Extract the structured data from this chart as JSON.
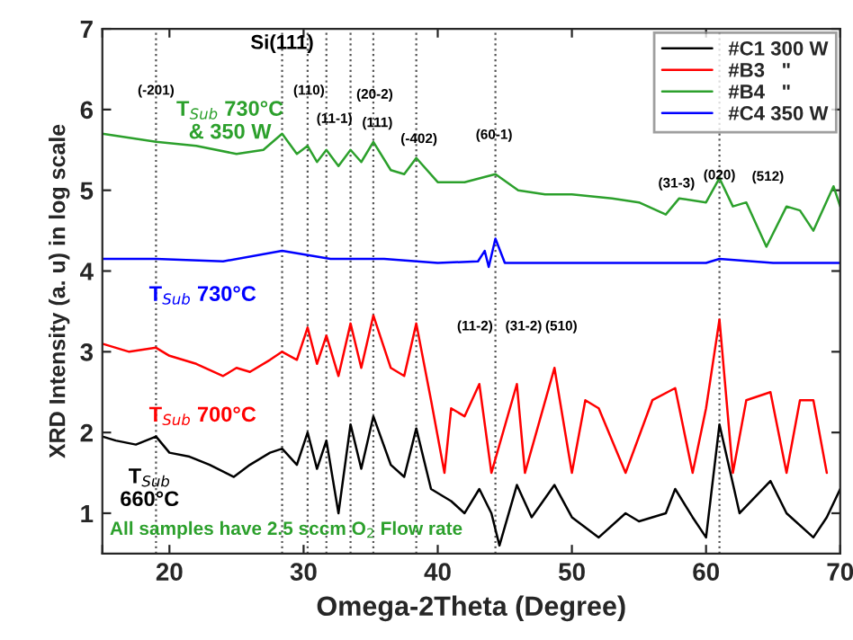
{
  "chart_data": {
    "type": "line",
    "xlabel": "Omega-2Theta (Degree)",
    "ylabel": "XRD Intensity (a. u) in log scale",
    "xlim": [
      15,
      70
    ],
    "xticks": [
      {
        "value": 15,
        "label": null
      },
      20,
      30,
      40,
      50,
      60,
      70
    ],
    "ylim": [
      0.5,
      7
    ],
    "yticks": [
      1,
      2,
      3,
      4,
      5,
      6,
      7
    ],
    "grid": false,
    "legend": "top right",
    "line_style": "solid",
    "marker": "none",
    "series": [
      {
        "name": "#C1 300 W",
        "color": "#000000",
        "x": [
          15,
          16,
          17.5,
          19,
          20,
          21.5,
          23,
          24.8,
          26,
          27.5,
          28.4,
          29.5,
          30.3,
          31,
          31.7,
          32.6,
          33.5,
          34.3,
          35.2,
          36.5,
          37.5,
          38.4,
          39.5,
          41,
          42,
          43.1,
          44,
          44.6,
          45.9,
          47,
          48.7,
          50,
          52,
          54,
          55,
          57,
          57.7,
          59,
          60,
          61,
          62.5,
          64.8,
          66,
          68,
          69,
          70
        ],
        "values": [
          1.95,
          1.9,
          1.85,
          1.95,
          1.75,
          1.7,
          1.6,
          1.45,
          1.6,
          1.75,
          1.8,
          1.6,
          2.0,
          1.55,
          1.9,
          1.0,
          2.1,
          1.55,
          2.2,
          1.6,
          1.45,
          2.05,
          1.3,
          1.15,
          1.0,
          1.3,
          1.0,
          0.6,
          1.35,
          0.95,
          1.35,
          0.95,
          0.7,
          1.0,
          0.9,
          1.0,
          1.3,
          0.95,
          0.7,
          2.1,
          1.0,
          1.4,
          1.0,
          0.7,
          0.95,
          1.3
        ]
      },
      {
        "name": "#B3   \"",
        "color": "#ff0000",
        "x": [
          15,
          17,
          19,
          20,
          22,
          24,
          25,
          26,
          27.5,
          28.4,
          29.5,
          30.3,
          31,
          31.7,
          32.6,
          33.5,
          34.3,
          35.2,
          36.5,
          37.5,
          38.4,
          39.5,
          40.5,
          41,
          42,
          43.1,
          44,
          45.9,
          46.5,
          48.7,
          50,
          51,
          52,
          54,
          56,
          57.7,
          59,
          60,
          61,
          62,
          63,
          64.8,
          66,
          67,
          68,
          69
        ],
        "values": [
          3.1,
          3.0,
          3.05,
          2.95,
          2.85,
          2.7,
          2.8,
          2.75,
          2.9,
          3.0,
          2.9,
          3.3,
          2.85,
          3.2,
          2.7,
          3.35,
          2.8,
          3.45,
          2.8,
          2.7,
          3.35,
          2.4,
          1.5,
          2.3,
          2.2,
          2.6,
          1.5,
          2.6,
          1.5,
          2.8,
          1.5,
          2.4,
          2.3,
          1.5,
          2.4,
          2.55,
          1.5,
          2.3,
          3.4,
          1.5,
          2.4,
          2.5,
          1.5,
          2.4,
          2.4,
          1.5
        ]
      },
      {
        "name": "#B4   \"",
        "color": "#2ca02c",
        "x": [
          15,
          17,
          19,
          22,
          25,
          27,
          28.4,
          29.5,
          30.3,
          31,
          31.7,
          32.6,
          33.5,
          34.3,
          35.2,
          36.5,
          37.5,
          38.4,
          40,
          42,
          44.3,
          46,
          48,
          50,
          53,
          55,
          57,
          58,
          60,
          61,
          62,
          63,
          64.5,
          66,
          67,
          68,
          69.5,
          70
        ],
        "values": [
          5.7,
          5.65,
          5.6,
          5.55,
          5.45,
          5.5,
          5.7,
          5.45,
          5.55,
          5.35,
          5.5,
          5.3,
          5.5,
          5.35,
          5.6,
          5.25,
          5.2,
          5.4,
          5.1,
          5.1,
          5.2,
          5.0,
          4.95,
          4.95,
          4.9,
          4.85,
          4.7,
          4.9,
          4.85,
          5.15,
          4.8,
          4.85,
          4.3,
          4.8,
          4.75,
          4.5,
          5.05,
          4.8
        ]
      },
      {
        "name": "#C4 350 W",
        "color": "#0000ff",
        "x": [
          15,
          19,
          24,
          28.4,
          32,
          36,
          40,
          43,
          43.5,
          43.8,
          44.3,
          45,
          50,
          55,
          60,
          61,
          65,
          70
        ],
        "values": [
          4.15,
          4.15,
          4.12,
          4.25,
          4.15,
          4.15,
          4.1,
          4.12,
          4.25,
          4.05,
          4.4,
          4.1,
          4.1,
          4.1,
          4.1,
          4.15,
          4.1,
          4.1
        ]
      }
    ],
    "ref_lines": [
      {
        "axis": "x",
        "value": 19,
        "color": "#555555",
        "line_style": "dotted"
      },
      {
        "axis": "x",
        "value": 28.4,
        "color": "#555555",
        "line_style": "dotted"
      },
      {
        "axis": "x",
        "value": 30.3,
        "color": "#555555",
        "line_style": "dotted"
      },
      {
        "axis": "x",
        "value": 31.7,
        "color": "#555555",
        "line_style": "dotted"
      },
      {
        "axis": "x",
        "value": 33.5,
        "color": "#555555",
        "line_style": "dotted"
      },
      {
        "axis": "x",
        "value": 35.2,
        "color": "#555555",
        "line_style": "dotted"
      },
      {
        "axis": "x",
        "value": 38.4,
        "color": "#555555",
        "line_style": "dotted"
      },
      {
        "axis": "x",
        "value": 44.3,
        "color": "#555555",
        "line_style": "dotted"
      },
      {
        "axis": "x",
        "value": 61,
        "color": "#555555",
        "line_style": "dotted"
      }
    ],
    "annotations": [
      {
        "text": "Si(111)",
        "x": 28.4,
        "y": 6.7
      },
      {
        "text": "(-201)",
        "x": 19,
        "y": 6.15
      },
      {
        "text": "(110)",
        "x": 30.4,
        "y": 6.15
      },
      {
        "text": "(11-1)",
        "x": 32.3,
        "y": 5.8
      },
      {
        "text": "(20-2)",
        "x": 35.3,
        "y": 6.1
      },
      {
        "text": "(111)",
        "x": 35.5,
        "y": 5.75
      },
      {
        "text": "(-402)",
        "x": 38.6,
        "y": 5.55
      },
      {
        "text": "(60-1)",
        "x": 44.2,
        "y": 5.6
      },
      {
        "text": "(31-3)",
        "x": 57.8,
        "y": 5.0
      },
      {
        "text": "(020)",
        "x": 61,
        "y": 5.1
      },
      "(512)",
      "(11-2)",
      "(31-2)",
      "(510)",
      "T$_{Sub}$ 730°C\n& 350 W",
      "T$_{Sub}$ 730°C",
      "T$_{Sub}$ 700°C",
      "T$_{Sub}$\n660°C",
      "All samples have 2.5 sccm O$_{2}$ Flow rate"
    ]
  }
}
